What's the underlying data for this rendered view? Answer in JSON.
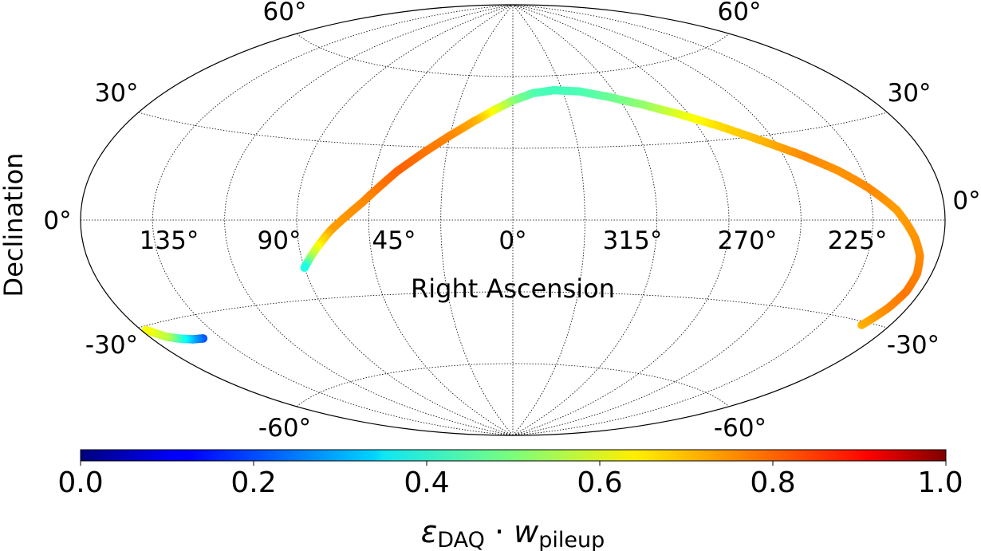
{
  "chart_data": {
    "type": "scatter",
    "projection": "aitoff",
    "xlabel": "Right Ascension",
    "ylabel": "Declination",
    "grid": true,
    "ra_ticks": [
      "135°",
      "90°",
      "45°",
      "0°",
      "315°",
      "270°",
      "225°"
    ],
    "dec_ticks_left": [
      "60°",
      "30°",
      "0°",
      "-30°",
      "-60°"
    ],
    "dec_ticks_right": [
      "60°",
      "30°",
      "0°",
      "-30°",
      "-60°"
    ],
    "colorbar": {
      "label_main": "ε",
      "label_sub1": "DAQ",
      "label_dot": " · ",
      "label_w": "w",
      "label_sub2": "pileup",
      "range": [
        0,
        1
      ],
      "colormap": "jet",
      "ticks": [
        "0.0",
        "0.2",
        "0.4",
        "0.6",
        "0.8",
        "1.0"
      ]
    },
    "track": [
      {
        "lon": 168,
        "lat": -31,
        "v": 0.7
      },
      {
        "lon": 172,
        "lat": -25,
        "v": 0.74
      },
      {
        "lon": 174,
        "lat": -20,
        "v": 0.76
      },
      {
        "lon": 174,
        "lat": -15,
        "v": 0.75
      },
      {
        "lon": 172,
        "lat": -10,
        "v": 0.74
      },
      {
        "lon": 168,
        "lat": -5,
        "v": 0.73
      },
      {
        "lon": 160,
        "lat": 3,
        "v": 0.72
      },
      {
        "lon": 150,
        "lat": 10,
        "v": 0.74
      },
      {
        "lon": 140,
        "lat": 16,
        "v": 0.73
      },
      {
        "lon": 128,
        "lat": 22,
        "v": 0.74
      },
      {
        "lon": 115,
        "lat": 28,
        "v": 0.7
      },
      {
        "lon": 100,
        "lat": 35,
        "v": 0.66
      },
      {
        "lon": 85,
        "lat": 41,
        "v": 0.6
      },
      {
        "lon": 70,
        "lat": 46,
        "v": 0.52
      },
      {
        "lon": 55,
        "lat": 50,
        "v": 0.48
      },
      {
        "lon": 40,
        "lat": 53,
        "v": 0.45
      },
      {
        "lon": 25,
        "lat": 54,
        "v": 0.44
      },
      {
        "lon": 12,
        "lat": 53,
        "v": 0.45
      },
      {
        "lon": 0,
        "lat": 50,
        "v": 0.5
      },
      {
        "lon": -10,
        "lat": 46,
        "v": 0.6
      },
      {
        "lon": -20,
        "lat": 41,
        "v": 0.7
      },
      {
        "lon": -30,
        "lat": 35,
        "v": 0.74
      },
      {
        "lon": -40,
        "lat": 28,
        "v": 0.76
      },
      {
        "lon": -50,
        "lat": 20,
        "v": 0.78
      },
      {
        "lon": -57,
        "lat": 13,
        "v": 0.76
      },
      {
        "lon": -63,
        "lat": 7,
        "v": 0.74
      },
      {
        "lon": -70,
        "lat": 1,
        "v": 0.73
      },
      {
        "lon": -76,
        "lat": -4,
        "v": 0.72
      },
      {
        "lon": -81,
        "lat": -9,
        "v": 0.65
      },
      {
        "lon": -86,
        "lat": -14,
        "v": 0.55
      },
      {
        "lon": -90,
        "lat": -18,
        "v": 0.4
      }
    ],
    "track2": [
      {
        "lon": -158,
        "lat": -37,
        "v": 0.2
      },
      {
        "lon": -163,
        "lat": -36.5,
        "v": 0.28
      },
      {
        "lon": -168,
        "lat": -35.5,
        "v": 0.4
      },
      {
        "lon": -173,
        "lat": -34,
        "v": 0.55
      },
      {
        "lon": -178,
        "lat": -31,
        "v": 0.62
      }
    ]
  }
}
